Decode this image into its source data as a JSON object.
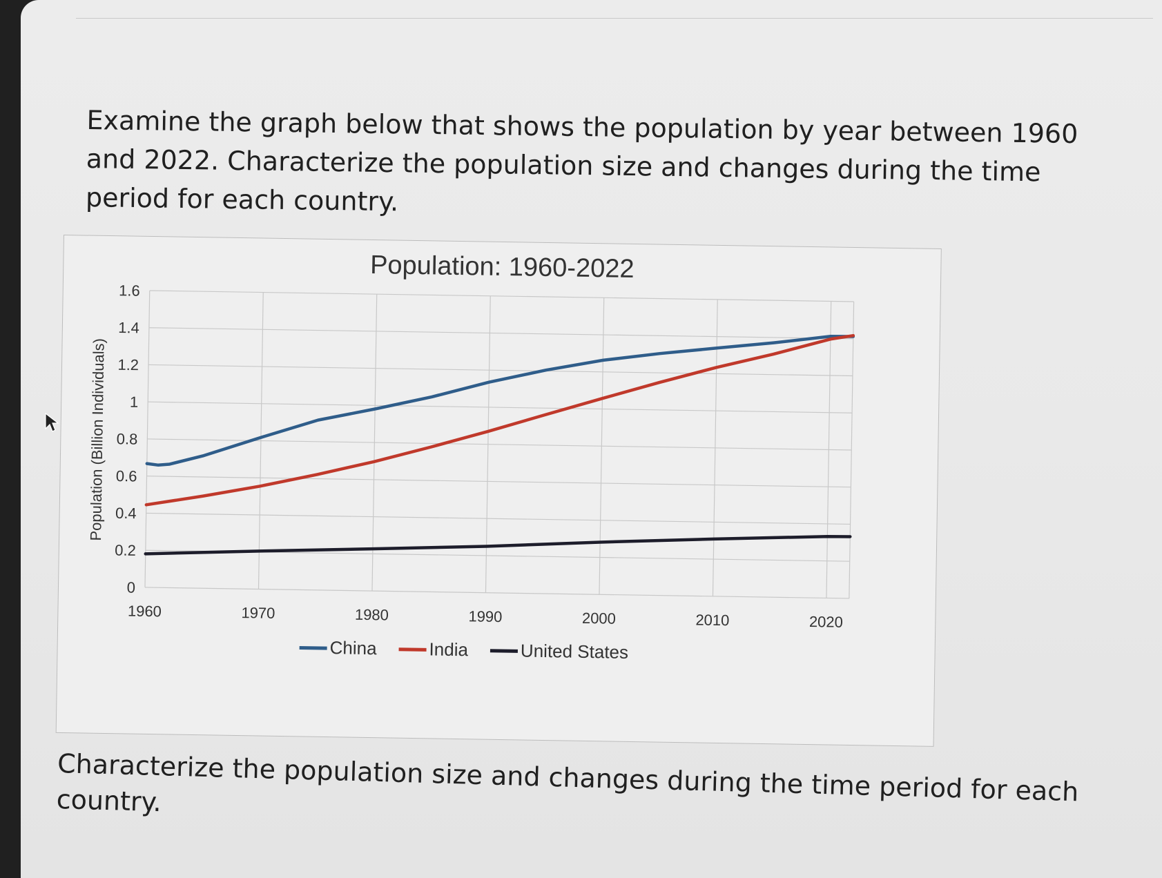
{
  "question": {
    "text": "Examine the graph below that shows the population by year between 1960 and 2022. Characterize the population size and changes during the time period for each country."
  },
  "prompt": {
    "text": "Characterize the population size and changes during the time period for each country."
  },
  "chart_data": {
    "type": "line",
    "title": "Population: 1960-2022",
    "xlabel": "",
    "ylabel": "Population (Billion Individuals)",
    "xlim": [
      1960,
      2022
    ],
    "ylim": [
      0,
      1.6
    ],
    "x_ticks": [
      1960,
      1970,
      1980,
      1990,
      2000,
      2010,
      2020
    ],
    "y_ticks": [
      {
        "value": 0,
        "label": "0"
      },
      {
        "value": 0.2,
        "label": "0.2"
      },
      {
        "value": 0.4,
        "label": "0.4"
      },
      {
        "value": 0.6,
        "label": "0.6"
      },
      {
        "value": 0.8,
        "label": "0.8"
      },
      {
        "value": 1.0,
        "label": "1"
      },
      {
        "value": 1.2,
        "label": "1.2"
      },
      {
        "value": 1.4,
        "label": "1.4"
      },
      {
        "value": 1.6,
        "label": "1.6"
      }
    ],
    "grid": true,
    "legend_position": "bottom",
    "series": [
      {
        "name": "China",
        "color": "#2f5d8a",
        "x": [
          1960,
          1961,
          1962,
          1965,
          1970,
          1975,
          1980,
          1985,
          1990,
          1995,
          2000,
          2005,
          2010,
          2015,
          2020,
          2022
        ],
        "y": [
          0.667,
          0.66,
          0.666,
          0.715,
          0.818,
          0.916,
          0.981,
          1.051,
          1.135,
          1.205,
          1.263,
          1.304,
          1.338,
          1.371,
          1.411,
          1.412
        ]
      },
      {
        "name": "India",
        "color": "#c0392b",
        "x": [
          1960,
          1965,
          1970,
          1975,
          1980,
          1985,
          1990,
          1995,
          2000,
          2005,
          2010,
          2015,
          2020,
          2022
        ],
        "y": [
          0.445,
          0.497,
          0.555,
          0.623,
          0.697,
          0.781,
          0.87,
          0.964,
          1.057,
          1.148,
          1.234,
          1.31,
          1.396,
          1.417
        ]
      },
      {
        "name": "United States",
        "color": "#1d1d2b",
        "x": [
          1960,
          1970,
          1980,
          1990,
          2000,
          2010,
          2020,
          2022
        ],
        "y": [
          0.181,
          0.205,
          0.227,
          0.25,
          0.282,
          0.309,
          0.332,
          0.333
        ]
      }
    ]
  }
}
